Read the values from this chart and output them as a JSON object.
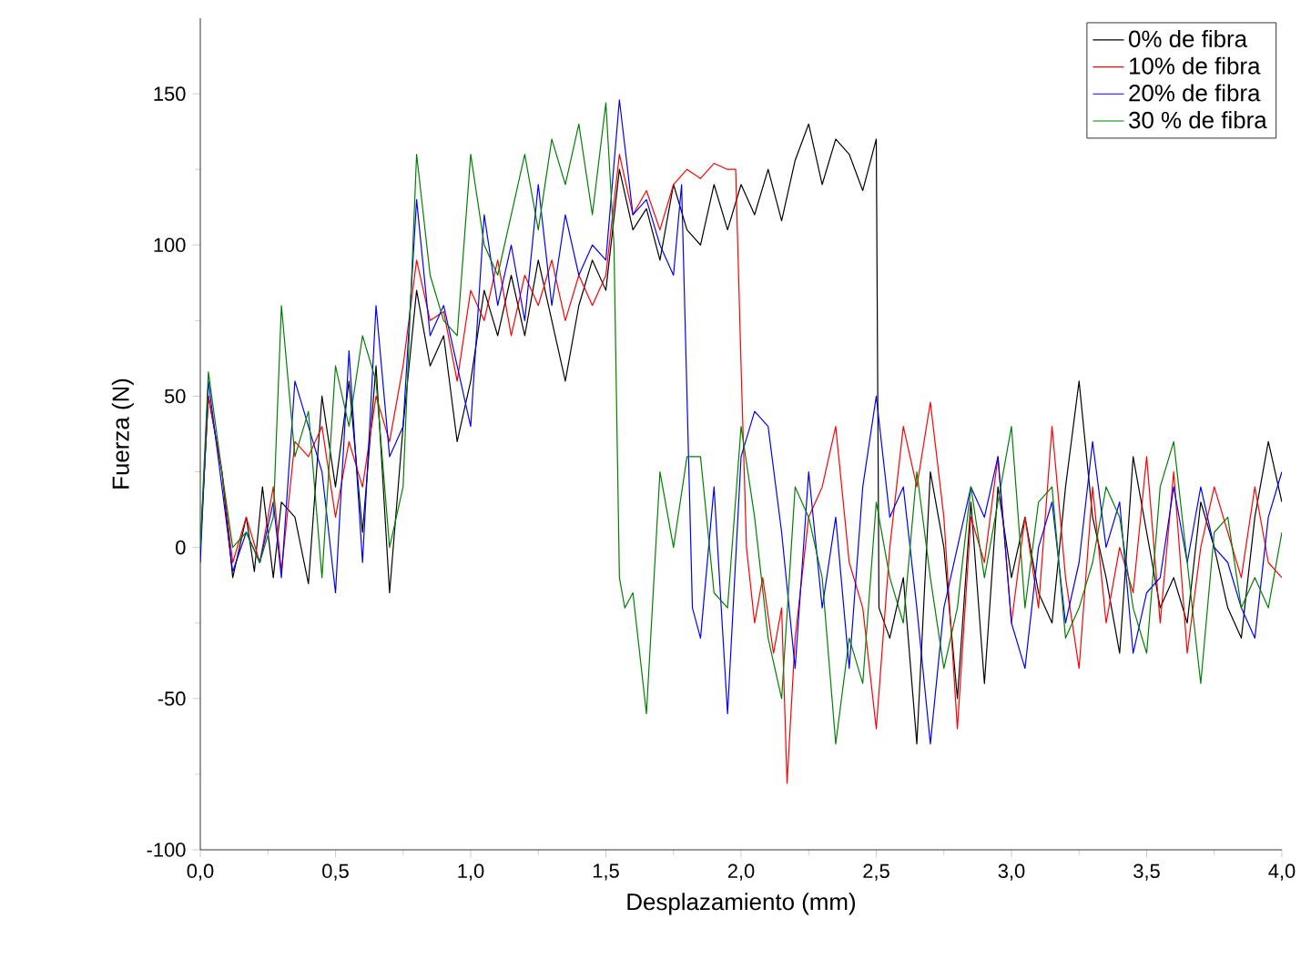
{
  "chart_data": {
    "type": "line",
    "xlabel": "Desplazamiento (mm)",
    "ylabel": "Fuerza (N)",
    "xlim": [
      0,
      4.0
    ],
    "ylim": [
      -100,
      175
    ],
    "xticks": [
      {
        "value": 0,
        "label": "0,0"
      },
      {
        "value": 0.5,
        "label": "0,5"
      },
      {
        "value": 1.0,
        "label": "1,0"
      },
      {
        "value": 1.5,
        "label": "1,5"
      },
      {
        "value": 2.0,
        "label": "2,0"
      },
      {
        "value": 2.5,
        "label": "2,5"
      },
      {
        "value": 3.0,
        "label": "3,0"
      },
      {
        "value": 3.5,
        "label": "3,5"
      },
      {
        "value": 4.0,
        "label": "4,0"
      }
    ],
    "yticks": [
      -100,
      -50,
      0,
      50,
      100,
      150
    ],
    "legend": "top right",
    "grid": false,
    "marker": "none",
    "line_style": "solid",
    "series": [
      {
        "name": "0% de fibra",
        "color": "#000000",
        "x": [
          0.0,
          0.03,
          0.08,
          0.12,
          0.17,
          0.2,
          0.23,
          0.27,
          0.3,
          0.35,
          0.4,
          0.45,
          0.5,
          0.55,
          0.6,
          0.65,
          0.7,
          0.75,
          0.8,
          0.85,
          0.9,
          0.95,
          1.0,
          1.05,
          1.1,
          1.15,
          1.2,
          1.25,
          1.3,
          1.35,
          1.4,
          1.45,
          1.5,
          1.55,
          1.6,
          1.65,
          1.7,
          1.75,
          1.8,
          1.85,
          1.9,
          1.95,
          2.0,
          2.05,
          2.1,
          2.15,
          2.2,
          2.25,
          2.3,
          2.35,
          2.4,
          2.45,
          2.5,
          2.51,
          2.55,
          2.6,
          2.65,
          2.7,
          2.75,
          2.8,
          2.85,
          2.9,
          2.95,
          3.0,
          3.05,
          3.1,
          3.15,
          3.2,
          3.25,
          3.3,
          3.35,
          3.4,
          3.45,
          3.5,
          3.55,
          3.6,
          3.65,
          3.7,
          3.75,
          3.8,
          3.85,
          3.9,
          3.95,
          4.0
        ],
        "values": [
          0,
          50,
          25,
          -10,
          10,
          -8,
          20,
          -10,
          15,
          10,
          -12,
          50,
          20,
          55,
          5,
          60,
          -15,
          40,
          85,
          60,
          70,
          35,
          55,
          85,
          70,
          90,
          70,
          95,
          75,
          55,
          80,
          95,
          85,
          125,
          105,
          112,
          95,
          120,
          105,
          100,
          120,
          105,
          120,
          110,
          125,
          108,
          128,
          140,
          120,
          135,
          130,
          118,
          135,
          -20,
          -30,
          -10,
          -65,
          25,
          0,
          -50,
          15,
          -45,
          20,
          -10,
          10,
          -15,
          -25,
          20,
          55,
          10,
          -10,
          -35,
          30,
          5,
          -20,
          -10,
          -25,
          15,
          0,
          -20,
          -30,
          10,
          35,
          15
        ]
      },
      {
        "name": "10% de fibra",
        "color": "#ff0000",
        "x": [
          0.0,
          0.03,
          0.08,
          0.12,
          0.17,
          0.22,
          0.27,
          0.3,
          0.35,
          0.4,
          0.45,
          0.5,
          0.55,
          0.6,
          0.65,
          0.7,
          0.75,
          0.8,
          0.85,
          0.9,
          0.95,
          1.0,
          1.05,
          1.1,
          1.15,
          1.2,
          1.25,
          1.3,
          1.35,
          1.4,
          1.45,
          1.5,
          1.55,
          1.6,
          1.65,
          1.7,
          1.75,
          1.8,
          1.85,
          1.9,
          1.95,
          1.98,
          2.0,
          2.02,
          2.05,
          2.08,
          2.12,
          2.15,
          2.17,
          2.2,
          2.25,
          2.3,
          2.35,
          2.4,
          2.45,
          2.5,
          2.55,
          2.6,
          2.65,
          2.7,
          2.75,
          2.8,
          2.85,
          2.9,
          2.95,
          3.0,
          3.05,
          3.1,
          3.15,
          3.2,
          3.25,
          3.3,
          3.35,
          3.4,
          3.45,
          3.5,
          3.55,
          3.6,
          3.65,
          3.7,
          3.75,
          3.8,
          3.85,
          3.9,
          3.95,
          4.0
        ],
        "values": [
          0,
          50,
          25,
          -5,
          10,
          -5,
          20,
          -8,
          35,
          30,
          40,
          10,
          35,
          20,
          50,
          35,
          60,
          95,
          75,
          78,
          55,
          85,
          75,
          95,
          70,
          90,
          80,
          95,
          75,
          90,
          80,
          90,
          130,
          110,
          118,
          105,
          120,
          125,
          122,
          127,
          125,
          125,
          60,
          0,
          -25,
          -10,
          -35,
          -20,
          -78,
          -30,
          10,
          20,
          40,
          -5,
          -20,
          -60,
          0,
          40,
          20,
          48,
          10,
          -60,
          10,
          -5,
          30,
          -25,
          10,
          -20,
          40,
          -10,
          -40,
          20,
          -25,
          0,
          -15,
          30,
          -25,
          25,
          -35,
          0,
          20,
          5,
          -10,
          20,
          -5,
          -10
        ]
      },
      {
        "name": "20% de fibra",
        "color": "#0000ff",
        "x": [
          0.0,
          0.03,
          0.08,
          0.12,
          0.17,
          0.22,
          0.27,
          0.3,
          0.35,
          0.4,
          0.45,
          0.5,
          0.55,
          0.6,
          0.65,
          0.7,
          0.75,
          0.8,
          0.85,
          0.9,
          0.95,
          1.0,
          1.05,
          1.1,
          1.15,
          1.2,
          1.25,
          1.3,
          1.35,
          1.4,
          1.45,
          1.5,
          1.55,
          1.6,
          1.65,
          1.7,
          1.75,
          1.78,
          1.8,
          1.82,
          1.85,
          1.9,
          1.95,
          2.0,
          2.05,
          2.1,
          2.15,
          2.2,
          2.25,
          2.3,
          2.35,
          2.4,
          2.45,
          2.5,
          2.55,
          2.6,
          2.65,
          2.7,
          2.75,
          2.8,
          2.85,
          2.9,
          2.95,
          3.0,
          3.05,
          3.1,
          3.15,
          3.2,
          3.25,
          3.3,
          3.35,
          3.4,
          3.45,
          3.5,
          3.55,
          3.6,
          3.65,
          3.7,
          3.75,
          3.8,
          3.85,
          3.9,
          3.95,
          4.0
        ],
        "values": [
          -5,
          55,
          20,
          -8,
          5,
          -5,
          15,
          -10,
          55,
          40,
          25,
          -15,
          65,
          -5,
          80,
          30,
          40,
          115,
          70,
          80,
          60,
          40,
          110,
          80,
          100,
          75,
          120,
          80,
          110,
          90,
          100,
          95,
          148,
          110,
          115,
          100,
          90,
          120,
          50,
          -20,
          -30,
          20,
          -55,
          30,
          45,
          40,
          5,
          -40,
          25,
          -20,
          10,
          -40,
          20,
          50,
          10,
          20,
          -20,
          -65,
          -20,
          0,
          20,
          10,
          30,
          -25,
          -40,
          0,
          15,
          -25,
          -5,
          35,
          0,
          15,
          -35,
          -15,
          -10,
          20,
          -5,
          20,
          0,
          -5,
          -20,
          -30,
          10,
          25
        ]
      },
      {
        "name": "30 % de fibra",
        "color": "#008000",
        "x": [
          0.0,
          0.03,
          0.08,
          0.12,
          0.17,
          0.22,
          0.27,
          0.3,
          0.35,
          0.4,
          0.45,
          0.5,
          0.55,
          0.6,
          0.65,
          0.7,
          0.75,
          0.8,
          0.85,
          0.9,
          0.95,
          1.0,
          1.05,
          1.1,
          1.15,
          1.2,
          1.25,
          1.3,
          1.35,
          1.4,
          1.45,
          1.5,
          1.53,
          1.55,
          1.57,
          1.6,
          1.65,
          1.7,
          1.75,
          1.8,
          1.85,
          1.9,
          1.95,
          2.0,
          2.05,
          2.1,
          2.15,
          2.2,
          2.25,
          2.3,
          2.35,
          2.4,
          2.45,
          2.5,
          2.55,
          2.6,
          2.65,
          2.7,
          2.75,
          2.8,
          2.85,
          2.9,
          2.95,
          3.0,
          3.05,
          3.1,
          3.15,
          3.2,
          3.25,
          3.3,
          3.35,
          3.4,
          3.45,
          3.5,
          3.55,
          3.6,
          3.65,
          3.7,
          3.75,
          3.8,
          3.85,
          3.9,
          3.95,
          4.0
        ],
        "values": [
          0,
          58,
          25,
          0,
          5,
          -5,
          10,
          80,
          30,
          45,
          -10,
          60,
          40,
          70,
          55,
          0,
          20,
          130,
          90,
          75,
          70,
          130,
          100,
          90,
          110,
          130,
          105,
          135,
          120,
          140,
          110,
          147,
          100,
          -10,
          -20,
          -15,
          -55,
          25,
          0,
          30,
          30,
          -15,
          -20,
          40,
          10,
          -30,
          -50,
          20,
          10,
          -10,
          -65,
          -30,
          -45,
          15,
          -10,
          -25,
          25,
          -10,
          -40,
          -20,
          20,
          -10,
          15,
          40,
          -20,
          15,
          20,
          -30,
          -20,
          -5,
          20,
          10,
          -20,
          -35,
          20,
          35,
          -5,
          -45,
          5,
          10,
          -20,
          -10,
          -20,
          5
        ]
      }
    ]
  }
}
